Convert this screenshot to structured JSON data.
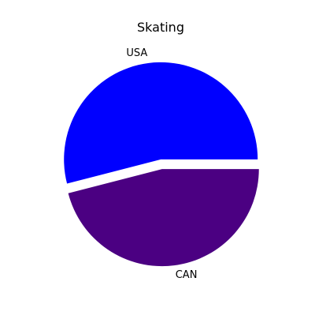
{
  "chart_data": {
    "type": "pie",
    "title": "Skating",
    "slices": [
      {
        "label": "USA",
        "value": 54,
        "color": "#0000ff"
      },
      {
        "label": "CAN",
        "value": 46,
        "color": "#4b0082"
      }
    ],
    "start_angle_deg": 0,
    "direction": "counterclockwise",
    "explode": [
      0.05,
      0.05
    ]
  }
}
